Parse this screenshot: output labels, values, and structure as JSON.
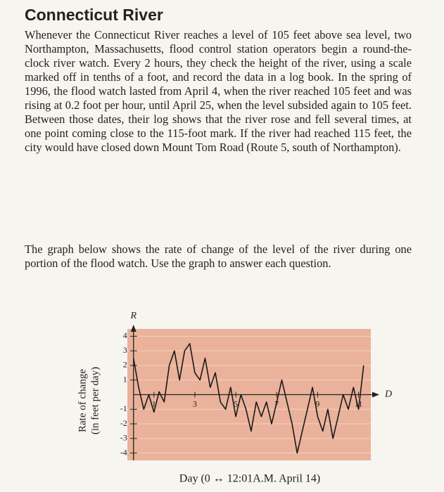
{
  "title": "Connecticut River",
  "paragraphs": [
    "Whenever the Connecticut River reaches a level of 105 feet above sea level, two Northampton, Massachusetts, flood control station operators begin a round-the-clock river watch. Every 2 hours, they check the height of the river, using a scale marked off in tenths of a foot, and record the data in a log book. In the spring of 1996, the flood watch lasted from April 4, when the river reached 105 feet and was rising at 0.2 foot per hour, until April 25, when the level subsided again to 105 feet. Between those dates, their log shows that the river rose and fell several times, at one point coming close to the 115-foot mark. If the river had reached 115 feet, the city would have closed down Mount Tom Road (Route 5, south of Northampton).",
    "The graph below shows the rate of change of the level of the river during one portion of the flood watch. Use the graph to answer each question."
  ],
  "chart_data": {
    "type": "line",
    "y_axis_name": "R",
    "x_axis_name": "D",
    "y_label": [
      "Rate of change",
      "(in feet per day)"
    ],
    "x_label": "Day (0 ↔ 12:01A.M. April 14)",
    "x": [
      0,
      0.25,
      0.5,
      0.75,
      1,
      1.25,
      1.5,
      1.75,
      2,
      2.25,
      2.5,
      2.75,
      3,
      3.25,
      3.5,
      3.75,
      4,
      4.25,
      4.5,
      4.75,
      5,
      5.25,
      5.5,
      5.75,
      6,
      6.25,
      6.5,
      6.75,
      7,
      7.25,
      7.5,
      7.75,
      8,
      8.25,
      8.5,
      8.75,
      9,
      9.25,
      9.5,
      9.75,
      10,
      10.25,
      10.5,
      10.75,
      11,
      11.25
    ],
    "values": [
      2.5,
      0.5,
      -1,
      0,
      -1.2,
      0.2,
      -0.5,
      2,
      3,
      1,
      3,
      3.5,
      1.5,
      1,
      2.5,
      0.5,
      1.5,
      -0.5,
      -1,
      0.5,
      -1.5,
      0,
      -1,
      -2.5,
      -0.5,
      -1.5,
      -0.5,
      -2,
      -0.5,
      1,
      -0.5,
      -2,
      -4,
      -2.5,
      -1,
      0.5,
      -1.5,
      -2.5,
      -1,
      -3,
      -1.5,
      0,
      -1,
      0.5,
      -1,
      2
    ],
    "color": "#1a1a1a",
    "background": "#eab29a",
    "xlim": [
      -0.3,
      11.6
    ],
    "ylim": [
      -4.5,
      4.5
    ],
    "xticks": [
      1,
      3,
      5,
      7,
      9,
      11
    ],
    "yticks": [
      4,
      3,
      2,
      1,
      -1,
      -2,
      -3,
      -4
    ],
    "grid": true
  }
}
